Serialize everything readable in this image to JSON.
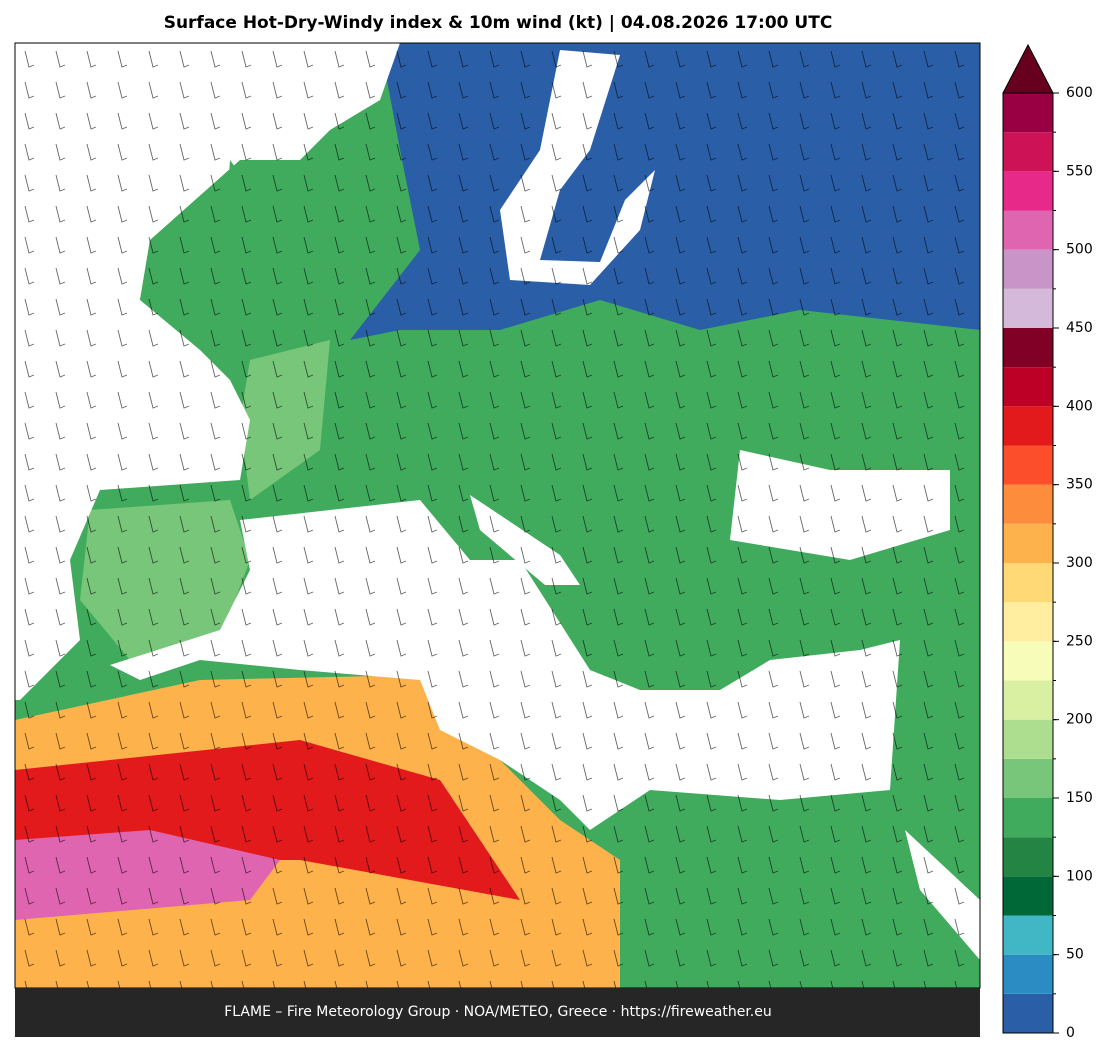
{
  "title": "Surface Hot-Dry-Windy index & 10m wind (kt)  |  04.08.2026 17:00 UTC",
  "footer": "FLAME – Fire Meteorology Group · NOA/METEO, Greece · https://fireweather.eu",
  "colorbar": {
    "ylim": [
      0,
      600
    ],
    "yticks": [
      0,
      50,
      100,
      150,
      200,
      250,
      300,
      350,
      400,
      450,
      500,
      550,
      600
    ],
    "bounds": [
      0,
      25,
      50,
      75,
      100,
      125,
      150,
      175,
      200,
      225,
      250,
      275,
      300,
      325,
      350,
      375,
      400,
      425,
      450,
      475,
      500,
      525,
      550,
      575,
      600
    ],
    "colors": [
      "#2a5fa8",
      "#2b8cc4",
      "#41b6c4",
      "#006837",
      "#238443",
      "#41ab5d",
      "#78c679",
      "#addd8e",
      "#d9f0a3",
      "#f7fcb9",
      "#ffeda0",
      "#fed976",
      "#feb24c",
      "#fd8d3c",
      "#fc4e2a",
      "#e31a1c",
      "#bd0026",
      "#800026",
      "#d4b9da",
      "#c994c7",
      "#df65b0",
      "#e7298a",
      "#ce1256",
      "#980043"
    ],
    "extend_color": "#67001f"
  }
}
